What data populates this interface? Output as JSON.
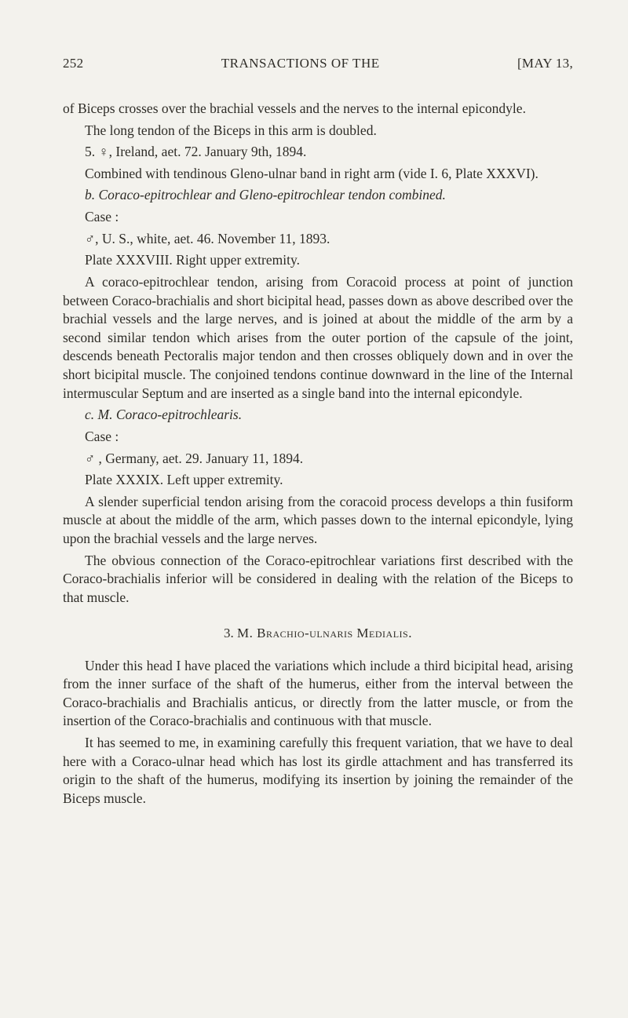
{
  "header": {
    "page_number": "252",
    "running_title": "TRANSACTIONS OF THE",
    "date_label": "[MAY 13,"
  },
  "body": {
    "p1": "of Biceps crosses over the brachial vessels and the nerves to the internal epicondyle.",
    "p2": "The long tendon of the Biceps in this arm is doubled.",
    "p3": "5. ♀, Ireland, aet. 72.  January 9th, 1894.",
    "p4": "Combined with tendinous Gleno-ulnar band in right arm (vide I. 6, Plate XXXVI).",
    "p5_label": "b. ",
    "p5_italic": "Coraco-epitrochlear and Gleno-epitrochlear tendon combined.",
    "p6": "Case :",
    "p7": "♂, U. S., white, aet. 46.  November 11, 1893.",
    "p8": "Plate XXXVIII.  Right upper extremity.",
    "p9": "A coraco-epitrochlear tendon, arising from Coracoid process at point of junction between Coraco-brachialis and short bicipital head, passes down as above described over the brachial vessels and the large nerves, and is joined at about the middle of the arm by a second similar tendon which arises from the outer portion of the capsule of the joint, descends beneath Pectoralis major tendon and then crosses obliquely down and in over the short bicipital muscle. The conjoined tendons continue downward in the line of the Internal intermuscular Septum and are inserted as a single band into the internal epicondyle.",
    "p10_label": "c. ",
    "p10_italic_a": "M. Coraco-epitrochlearis.",
    "p11": "Case :",
    "p12": "♂ , Germany, aet. 29.  January 11, 1894.",
    "p13": "Plate XXXIX.  Left upper extremity.",
    "p14": "A slender superficial tendon arising from the coracoid process develops a thin fusiform muscle at about the middle of the arm, which passes down to the internal epicondyle, lying upon the brachial vessels and the large nerves.",
    "p15": "The obvious connection of the Coraco-epitrochlear variations first described with the Coraco-brachialis inferior will be considered in dealing with the relation of the Biceps to that muscle.",
    "section_heading_num": "3. ",
    "section_heading_text": "M. Brachio-ulnaris Medialis.",
    "p16": "Under this head I have placed the variations which include a third bicipital head, arising from the inner surface of the shaft of the humerus, either from the interval between the Coraco-brachialis and Brachialis anticus, or directly from the latter muscle, or from the insertion of the Coraco-brachialis and continuous with that muscle.",
    "p17": "It has seemed to me, in examining carefully this frequent variation, that we have to deal here with a Coraco-ulnar head which has lost its girdle attachment and has transferred its origin to the shaft of the humerus, modifying its insertion by joining the remainder of the Biceps muscle."
  }
}
